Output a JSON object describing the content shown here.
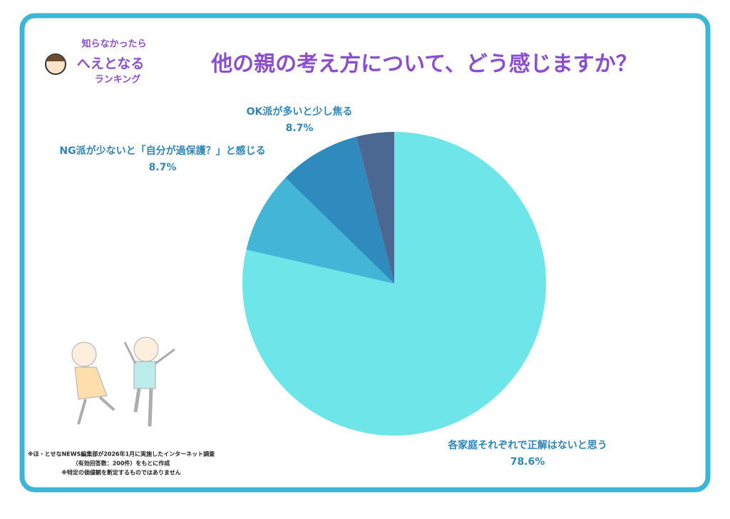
{
  "chart_data": {
    "type": "pie",
    "title": "他の親の考え方について、どう感じますか？",
    "categories": [
      "各家庭それぞれで正解はないと思う",
      "NG派が少ないと「自分が過保護？」と感じる",
      "OK派が多いと少し焦る",
      null
    ],
    "values": [
      78.6,
      8.7,
      8.7,
      4.0
    ],
    "value_labels": [
      "78.6%",
      "8.7%",
      "8.7%",
      null
    ],
    "colors": [
      "#6de5e9",
      "#43b6d7",
      "#2f8bbd",
      "#4b6893"
    ]
  },
  "logo": {
    "line1": "知らなかったら",
    "line2": "へえとなる",
    "line3": "ランキング"
  },
  "notes": [
    "※ほ・とせなNEWS編集部が2026年1月に実施したインターネット調査",
    "（有効回答数：200件）をもとに作成",
    "※特定の価値観を断定するものではありません"
  ]
}
